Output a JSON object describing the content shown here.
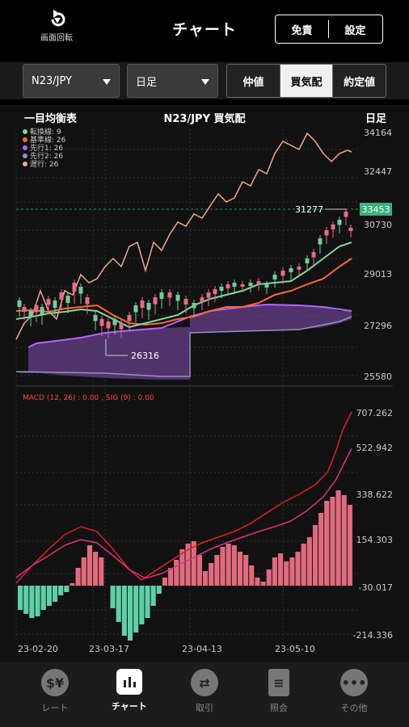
{
  "header": {
    "rotate_label": "画面回転",
    "title": "チャート",
    "disclaimer_label": "免責",
    "settings_label": "設定"
  },
  "controls": {
    "pair": "N23/JPY",
    "period": "日足",
    "price_types": [
      "仲値",
      "買気配",
      "約定値"
    ],
    "active_price_type": "買気配"
  },
  "chart": {
    "header_left": "一目均衡表",
    "header_center": "N23/JPY 買気配",
    "header_right": "日足",
    "legend": [
      {
        "label": "転換線: 9",
        "color": "#7ed9a0"
      },
      {
        "label": "基準線: 26",
        "color": "#ff6633"
      },
      {
        "label": "先行1: 26",
        "color": "#b266ff"
      },
      {
        "label": "先行2: 26",
        "color": "#9a8fc0"
      },
      {
        "label": "遅行: 26",
        "color": "#f0a890"
      }
    ],
    "price_axis": [
      "34164",
      "32447",
      "30730",
      "29013",
      "27296",
      "25580"
    ],
    "current_price": "33453",
    "current_price_color": "#3bb07a",
    "annotation_high": "31277",
    "annotation_low": "26316",
    "macd_label": "MACD (12, 26) : 0.00 , SIG (9) : 0.00",
    "macd_axis": [
      "707.262",
      "522.942",
      "338.622",
      "154.303",
      "-30.017",
      "-214.336"
    ],
    "dates": [
      "23-02-20",
      "23-03-17",
      "23-04-13",
      "23-05-10"
    ]
  },
  "tabs": [
    {
      "label": "レート",
      "icon": "currency-exchange-icon"
    },
    {
      "label": "チャート",
      "icon": "bar-chart-icon"
    },
    {
      "label": "取引",
      "icon": "swap-arrows-icon"
    },
    {
      "label": "照会",
      "icon": "document-icon"
    },
    {
      "label": "その他",
      "icon": "more-dots-icon"
    }
  ],
  "active_tab": "チャート"
}
